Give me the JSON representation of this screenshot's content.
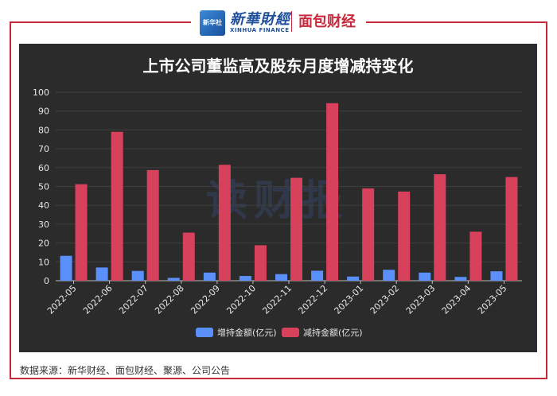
{
  "header": {
    "logo_badge": "新华社",
    "brand_cn": "新華財經",
    "brand_en": "XINHUA FINANCE",
    "partner": "面包财经"
  },
  "colors": {
    "increase": "#5b8ff9",
    "decrease": "#d7415b",
    "panel_bg": "#2b2b2b",
    "frame": "#c8283c"
  },
  "watermark": "读财报",
  "source": "数据来源：新华财经、面包财经、聚源、公司公告",
  "chart_data": {
    "type": "bar",
    "title": "上市公司董监高及股东月度增减持变化",
    "xlabel": "",
    "ylabel": "",
    "ylim": [
      0,
      100
    ],
    "yticks": [
      0,
      10,
      20,
      30,
      40,
      50,
      60,
      70,
      80,
      90,
      100
    ],
    "grid": true,
    "legend_position": "bottom-center",
    "categories": [
      "2022-05",
      "2022-06",
      "2022-07",
      "2022-08",
      "2022-09",
      "2022-10",
      "2022-11",
      "2022-12",
      "2023-01",
      "2023-02",
      "2023-03",
      "2023-04",
      "2023-05"
    ],
    "series": [
      {
        "name": "增持金额(亿元)",
        "color": "#5b8ff9",
        "values": [
          13.2,
          7.0,
          5.2,
          1.5,
          4.3,
          2.5,
          3.5,
          5.3,
          2.2,
          5.8,
          4.3,
          2.0,
          5.0
        ]
      },
      {
        "name": "减持金额(亿元)",
        "color": "#d7415b",
        "values": [
          51.2,
          79.0,
          58.7,
          25.5,
          61.5,
          18.8,
          54.6,
          94.2,
          49.0,
          47.3,
          56.5,
          26.0,
          55.0
        ]
      }
    ]
  }
}
